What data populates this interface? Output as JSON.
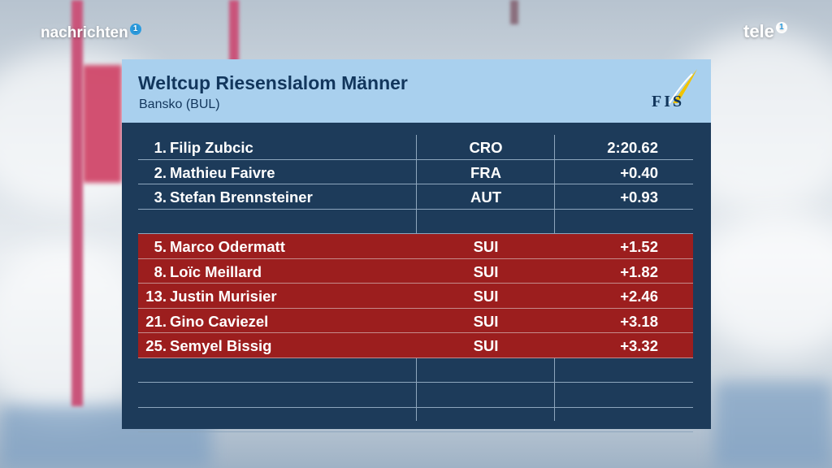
{
  "broadcast": {
    "left_logo": "nachrichten",
    "left_logo_badge": "1",
    "right_logo": "tele",
    "right_logo_badge": "1"
  },
  "panel": {
    "title": "Weltcup Riesenslalom Männer",
    "subtitle": "Bansko (BUL)",
    "logo_text": "FIS",
    "colors": {
      "header": "#a9d0ee",
      "body": "#1d3b5a",
      "highlight": "#9c1e1e"
    }
  },
  "results": [
    {
      "rank": "1.",
      "name": "Filip Zubcic",
      "nation": "CRO",
      "time": "2:20.62",
      "highlight": false
    },
    {
      "rank": "2.",
      "name": "Mathieu Faivre",
      "nation": "FRA",
      "time": "+0.40",
      "highlight": false
    },
    {
      "rank": "3.",
      "name": "Stefan Brennsteiner",
      "nation": "AUT",
      "time": "+0.93",
      "highlight": false
    },
    {
      "rank": "",
      "name": "",
      "nation": "",
      "time": "",
      "highlight": false
    },
    {
      "rank": "5.",
      "name": "Marco Odermatt",
      "nation": "SUI",
      "time": "+1.52",
      "highlight": true
    },
    {
      "rank": "8.",
      "name": "Loïc Meillard",
      "nation": "SUI",
      "time": "+1.82",
      "highlight": true
    },
    {
      "rank": "13.",
      "name": "Justin Murisier",
      "nation": "SUI",
      "time": "+2.46",
      "highlight": true
    },
    {
      "rank": "21.",
      "name": "Gino Caviezel",
      "nation": "SUI",
      "time": "+3.18",
      "highlight": true
    },
    {
      "rank": "25.",
      "name": "Semyel Bissig",
      "nation": "SUI",
      "time": "+3.32",
      "highlight": true
    },
    {
      "rank": "",
      "name": "",
      "nation": "",
      "time": "",
      "highlight": false
    },
    {
      "rank": "",
      "name": "",
      "nation": "",
      "time": "",
      "highlight": false
    },
    {
      "rank": "",
      "name": "",
      "nation": "",
      "time": "",
      "highlight": false
    }
  ]
}
